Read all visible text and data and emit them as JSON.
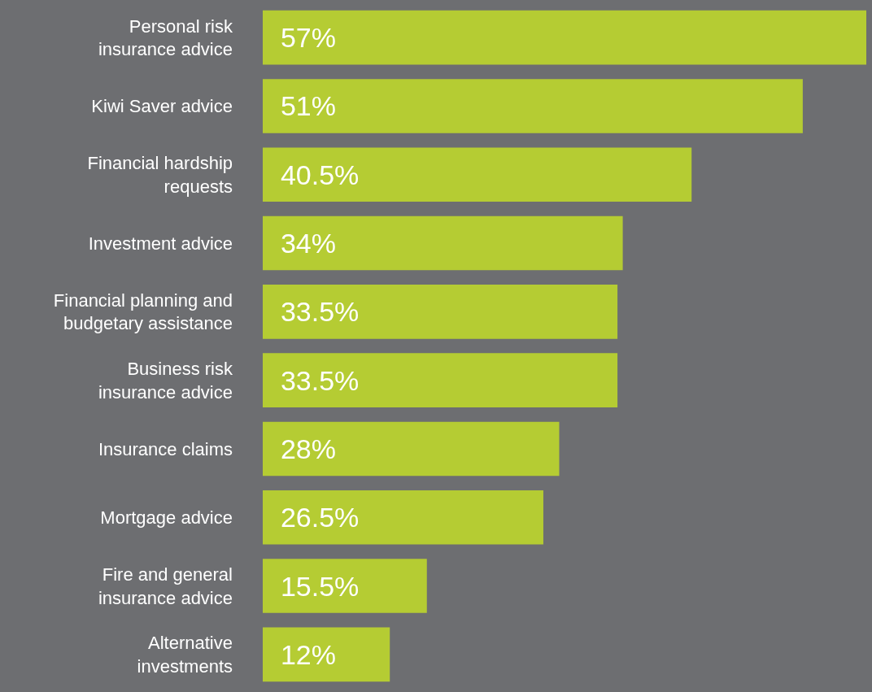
{
  "chart_data": {
    "type": "bar",
    "orientation": "horizontal",
    "color": "#b5cc33",
    "categories": [
      "Personal risk insurance advice",
      "Kiwi Saver advice",
      "Financial hardship requests",
      "Investment advice",
      "Financial planning and budgetary assistance",
      "Business risk insurance advice",
      "Insurance claims",
      "Mortgage advice",
      "Fire and general insurance advice",
      "Alternative investments"
    ],
    "values": [
      57,
      51,
      40.5,
      34,
      33.5,
      33.5,
      28,
      26.5,
      15.5,
      12
    ],
    "value_labels": [
      "57%",
      "51%",
      "40.5%",
      "34%",
      "33.5%",
      "33.5%",
      "28%",
      "26.5%",
      "15.5%",
      "12%"
    ],
    "legend": false
  }
}
